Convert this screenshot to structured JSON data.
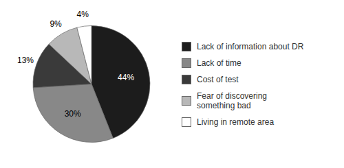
{
  "chart_data": {
    "type": "pie",
    "categories": [
      "Lack of information about DR",
      "Lack of time",
      "Cost of test",
      "Fear of discovering\nsomething bad",
      "Living in remote area"
    ],
    "values": [
      44,
      30,
      13,
      9,
      4
    ],
    "value_labels": [
      "44%",
      "30%",
      "13%",
      "9%",
      "4%"
    ],
    "colors": [
      "#1c1c1c",
      "#888888",
      "#3a3a3a",
      "#b8b8b8",
      "#ffffff"
    ],
    "data_labels": true,
    "legend": "right"
  }
}
